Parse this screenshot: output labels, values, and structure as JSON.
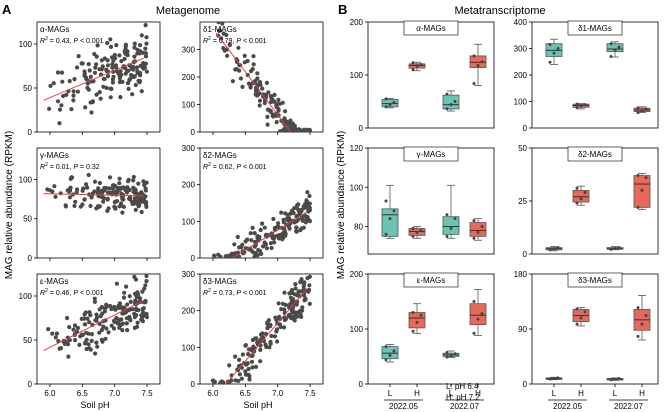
{
  "chart_data": {
    "type": "figure",
    "colors": {
      "scatter_point": "#4a4a4a",
      "fit_line": "#e0414a",
      "L_box": "#6cc3b3",
      "H_box": "#e8695a",
      "axis": "#000000"
    },
    "panel_letters": [
      "A",
      "B"
    ],
    "section_titles": [
      "Metagenome",
      "Metatranscriptome"
    ],
    "y_axis_label": "MAG relative abundance (RPKM)",
    "metagenome": {
      "type": "scatter",
      "xlabel": "Soil pH",
      "xlim": [
        5.8,
        7.7
      ],
      "xticks": [
        "6.0",
        "6.5",
        "7.0",
        "7.5"
      ],
      "panels": [
        {
          "label": "α-MAGs",
          "stats_pre": "R",
          "stats_r2": " = 0.43, ",
          "stats_p": " < 0.001",
          "ylim": [
            0,
            125
          ],
          "yticks": [
            0,
            50,
            100
          ],
          "fit": [
            [
              5.9,
              36
            ],
            [
              7.45,
              84
            ]
          ],
          "n": 170,
          "noise": 22
        },
        {
          "label": "δ1-MAGs",
          "stats_pre": "R",
          "stats_r2": " = 0.79, ",
          "stats_p": " < 0.001",
          "ylim": [
            0,
            400
          ],
          "yticks": [
            0,
            100,
            200,
            300
          ],
          "fit": [
            [
              6.05,
              360
            ],
            [
              7.2,
              0
            ]
          ],
          "n": 170,
          "noise": 45
        },
        {
          "label": "γ-MAGs",
          "stats_pre": "R",
          "stats_r2": " = 0.01, ",
          "stats_p": " = 0.32",
          "ylim": [
            0,
            140
          ],
          "yticks": [
            0,
            50,
            100
          ],
          "fit": [
            [
              5.9,
              82
            ],
            [
              7.45,
              79
            ]
          ],
          "n": 170,
          "noise": 14
        },
        {
          "label": "δ2-MAGs",
          "stats_pre": "R",
          "stats_r2": " = 0.62, ",
          "stats_p": " < 0.001",
          "ylim": [
            0,
            300
          ],
          "yticks": [
            0,
            100,
            200,
            300
          ],
          "fit": [
            [
              6.3,
              0
            ],
            [
              7.45,
              125
            ]
          ],
          "n": 170,
          "noise": 30
        },
        {
          "label": "ε-MAGs",
          "stats_pre": "R",
          "stats_r2": " = 0.46, ",
          "stats_p": " < 0.001",
          "ylim": [
            0,
            125
          ],
          "yticks": [
            0,
            50,
            100
          ],
          "fit": [
            [
              5.9,
              38
            ],
            [
              7.45,
              95
            ]
          ],
          "n": 170,
          "noise": 18
        },
        {
          "label": "δ3-MAGs",
          "stats_pre": "R",
          "stats_r2": " = 0.73, ",
          "stats_p": " < 0.001",
          "ylim": [
            0,
            300
          ],
          "yticks": [
            0,
            100,
            200,
            300
          ],
          "fit": [
            [
              6.2,
              0
            ],
            [
              7.45,
              260
            ]
          ],
          "n": 170,
          "noise": 40
        }
      ]
    },
    "metatranscriptome": {
      "type": "box",
      "categories": [
        "L",
        "H",
        "L",
        "H"
      ],
      "groups": [
        "2022.05",
        "2022.07"
      ],
      "legend": [
        "L: pH 6.4",
        "H: pH 7.2"
      ],
      "panels": [
        {
          "label": "α-MAGs",
          "ylim": [
            0,
            200
          ],
          "yticks": [
            0,
            100,
            200
          ],
          "boxes": [
            {
              "min": 38,
              "q1": 40,
              "med": 46,
              "q3": 54,
              "max": 56,
              "pts": [
                40,
                44,
                48,
                55
              ]
            },
            {
              "min": 108,
              "q1": 113,
              "med": 118,
              "q3": 121,
              "max": 124,
              "pts": [
                110,
                117,
                120,
                123
              ]
            },
            {
              "min": 32,
              "q1": 36,
              "med": 44,
              "q3": 62,
              "max": 70,
              "pts": [
                36,
                44,
                50,
                64
              ]
            },
            {
              "min": 80,
              "q1": 114,
              "med": 124,
              "q3": 136,
              "max": 158,
              "pts": [
                84,
                118,
                125,
                136
              ]
            }
          ]
        },
        {
          "label": "δ1-MAGs",
          "ylim": [
            0,
            400
          ],
          "yticks": [
            0,
            100,
            200,
            300,
            400
          ],
          "boxes": [
            {
              "min": 240,
              "q1": 270,
              "med": 293,
              "q3": 318,
              "max": 335,
              "pts": [
                248,
                282,
                300,
                315
              ]
            },
            {
              "min": 72,
              "q1": 78,
              "med": 85,
              "q3": 90,
              "max": 92,
              "pts": [
                77,
                84,
                88,
                90
              ]
            },
            {
              "min": 268,
              "q1": 288,
              "med": 298,
              "q3": 318,
              "max": 325,
              "pts": [
                270,
                295,
                305,
                318
              ]
            },
            {
              "min": 58,
              "q1": 62,
              "med": 68,
              "q3": 75,
              "max": 80,
              "pts": [
                58,
                66,
                72,
                76
              ]
            }
          ]
        },
        {
          "label": "γ-MAGs",
          "ylim": [
            66,
            120
          ],
          "yticks": [
            80,
            100,
            120
          ],
          "boxes": [
            {
              "min": 74,
              "q1": 75,
              "med": 86,
              "q3": 89,
              "max": 101,
              "pts": [
                76,
                84,
                88,
                93
              ]
            },
            {
              "min": 74,
              "q1": 75.5,
              "med": 77.5,
              "q3": 79,
              "max": 80,
              "pts": [
                75,
                77,
                78,
                79
              ]
            },
            {
              "min": 74,
              "q1": 76,
              "med": 80,
              "q3": 85,
              "max": 101,
              "pts": [
                75,
                79,
                84,
                86
              ]
            },
            {
              "min": 73,
              "q1": 75,
              "med": 78,
              "q3": 82,
              "max": 84,
              "pts": [
                74,
                77,
                80,
                83
              ]
            }
          ]
        },
        {
          "label": "δ2-MAGs",
          "ylim": [
            0,
            50
          ],
          "yticks": [
            0,
            25,
            50
          ],
          "boxes": [
            {
              "min": 1.5,
              "q1": 2,
              "med": 2.5,
              "q3": 3,
              "max": 3.5,
              "pts": [
                2,
                2.5,
                3
              ]
            },
            {
              "min": 23,
              "q1": 24.5,
              "med": 27,
              "q3": 30,
              "max": 32,
              "pts": [
                24,
                26,
                29,
                31
              ]
            },
            {
              "min": 2,
              "q1": 2.2,
              "med": 2.7,
              "q3": 3,
              "max": 3.5,
              "pts": [
                2.2,
                2.6,
                3
              ]
            },
            {
              "min": 21,
              "q1": 22,
              "med": 33,
              "q3": 37,
              "max": 38,
              "pts": [
                22,
                30,
                36,
                37
              ]
            }
          ]
        },
        {
          "label": "ε-MAGs",
          "ylim": [
            0,
            200
          ],
          "yticks": [
            0,
            100,
            200
          ],
          "boxes": [
            {
              "min": 40,
              "q1": 46,
              "med": 56,
              "q3": 68,
              "max": 72,
              "pts": [
                44,
                52,
                60,
                68
              ]
            },
            {
              "min": 92,
              "q1": 102,
              "med": 120,
              "q3": 130,
              "max": 146,
              "pts": [
                96,
                112,
                125,
                130
              ]
            },
            {
              "min": 48,
              "q1": 50,
              "med": 53,
              "q3": 56,
              "max": 60,
              "pts": [
                49,
                52,
                55,
                57
              ]
            },
            {
              "min": 88,
              "q1": 108,
              "med": 125,
              "q3": 146,
              "max": 172,
              "pts": [
                92,
                118,
                128,
                150
              ]
            }
          ]
        },
        {
          "label": "δ3-MAGs",
          "ylim": [
            0,
            180
          ],
          "yticks": [
            0,
            90,
            180
          ],
          "boxes": [
            {
              "min": 7,
              "q1": 8,
              "med": 9,
              "q3": 10,
              "max": 11,
              "pts": [
                8,
                9,
                10
              ]
            },
            {
              "min": 95,
              "q1": 102,
              "med": 112,
              "q3": 122,
              "max": 125,
              "pts": [
                98,
                108,
                118,
                123
              ]
            },
            {
              "min": 6,
              "q1": 7,
              "med": 8,
              "q3": 9,
              "max": 10,
              "pts": [
                7,
                8,
                9
              ]
            },
            {
              "min": 72,
              "q1": 88,
              "med": 105,
              "q3": 122,
              "max": 145,
              "pts": [
                78,
                98,
                112,
                125
              ]
            }
          ]
        }
      ]
    }
  }
}
